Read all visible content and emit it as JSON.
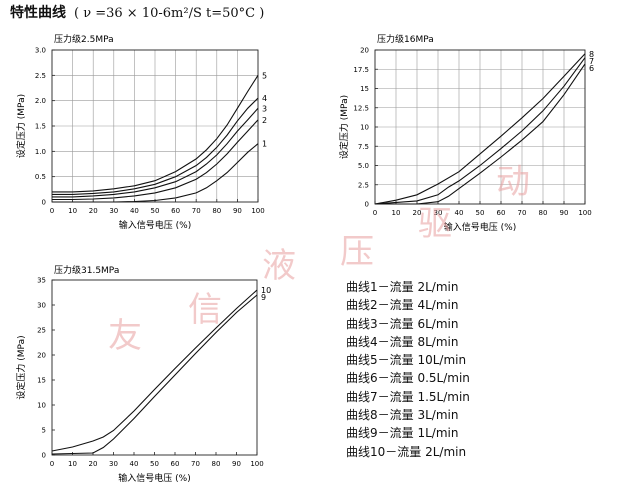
{
  "header": {
    "title": "特性曲线",
    "condition": "( ν =36 × 10-6m²/S  t=50°C )"
  },
  "legend": [
    "曲线1－流量 2L/min",
    "曲线2－流量 4L/min",
    "曲线3－流量 6L/min",
    "曲线4－流量 8L/min",
    "曲线5－流量 10L/min",
    "曲线6－流量 0.5L/min",
    "曲线7－流量 1.5L/min",
    "曲线8－流量 3L/min",
    "曲线9－流量 1L/min",
    "曲线10－流量 2L/min"
  ],
  "watermark": [
    "友",
    "信",
    "液",
    "压",
    "驱",
    "动"
  ],
  "chart_data": [
    {
      "type": "line",
      "title": "压力级2.5MPa",
      "xlabel": "输入信号电压 (%)",
      "ylabel": "设定压力 (MPa)",
      "xlim": [
        0,
        100
      ],
      "ylim": [
        0,
        3.0
      ],
      "xticks": [
        "0",
        "10",
        "20",
        "30",
        "40",
        "50",
        "60",
        "70",
        "80",
        "90",
        "100"
      ],
      "yticks": [
        "0",
        "0.5",
        "1.0",
        "1.5",
        "2.0",
        "2.5",
        "3.0"
      ],
      "grid": true,
      "series": [
        {
          "name": "1",
          "x": [
            0,
            10,
            20,
            30,
            40,
            50,
            60,
            70,
            75,
            80,
            85,
            90,
            95,
            100
          ],
          "y": [
            0,
            0,
            0,
            0,
            0.01,
            0.03,
            0.08,
            0.18,
            0.28,
            0.42,
            0.58,
            0.78,
            0.98,
            1.15
          ]
        },
        {
          "name": "2",
          "x": [
            0,
            10,
            20,
            30,
            40,
            50,
            60,
            70,
            75,
            80,
            85,
            90,
            95,
            100
          ],
          "y": [
            0.05,
            0.05,
            0.06,
            0.08,
            0.12,
            0.18,
            0.28,
            0.45,
            0.58,
            0.75,
            0.95,
            1.18,
            1.4,
            1.62
          ]
        },
        {
          "name": "3",
          "x": [
            0,
            10,
            20,
            30,
            40,
            50,
            60,
            70,
            75,
            80,
            85,
            90,
            95,
            100
          ],
          "y": [
            0.1,
            0.1,
            0.12,
            0.15,
            0.2,
            0.28,
            0.4,
            0.6,
            0.75,
            0.93,
            1.15,
            1.4,
            1.62,
            1.85
          ]
        },
        {
          "name": "4",
          "x": [
            0,
            10,
            20,
            30,
            40,
            50,
            60,
            70,
            75,
            80,
            85,
            90,
            95,
            100
          ],
          "y": [
            0.15,
            0.15,
            0.17,
            0.2,
            0.26,
            0.35,
            0.5,
            0.72,
            0.88,
            1.08,
            1.32,
            1.6,
            1.85,
            2.05
          ]
        },
        {
          "name": "5",
          "x": [
            0,
            10,
            20,
            30,
            40,
            50,
            60,
            70,
            75,
            80,
            85,
            90,
            95,
            100
          ],
          "y": [
            0.2,
            0.2,
            0.22,
            0.26,
            0.32,
            0.42,
            0.6,
            0.85,
            1.03,
            1.25,
            1.52,
            1.85,
            2.18,
            2.5
          ]
        }
      ]
    },
    {
      "type": "line",
      "title": "压力级16MPa",
      "xlabel": "输入信号电压 (%)",
      "ylabel": "设定压力 (MPa)",
      "xlim": [
        0,
        100
      ],
      "ylim": [
        0,
        20
      ],
      "xticks": [
        "0",
        "10",
        "20",
        "30",
        "40",
        "50",
        "60",
        "70",
        "80",
        "90",
        "100"
      ],
      "yticks": [
        "0",
        "2.5",
        "5.0",
        "7.5",
        "10",
        "12.5",
        "15",
        "17.5",
        "20"
      ],
      "grid": true,
      "series": [
        {
          "name": "6",
          "x": [
            0,
            20,
            30,
            35,
            40,
            50,
            60,
            70,
            80,
            90,
            100
          ],
          "y": [
            0,
            0,
            0.3,
            1.0,
            2.0,
            4.0,
            6.1,
            8.3,
            10.7,
            14.2,
            18.2
          ]
        },
        {
          "name": "7",
          "x": [
            0,
            20,
            30,
            35,
            40,
            50,
            60,
            70,
            80,
            90,
            100
          ],
          "y": [
            0,
            0.4,
            1.2,
            2.2,
            3.0,
            5.0,
            7.2,
            9.5,
            12.1,
            15.3,
            19.0
          ]
        },
        {
          "name": "8",
          "x": [
            0,
            10,
            20,
            30,
            40,
            50,
            60,
            70,
            80,
            90,
            100
          ],
          "y": [
            0,
            0.5,
            1.2,
            2.6,
            4.2,
            6.5,
            8.8,
            11.2,
            13.7,
            16.6,
            19.5
          ]
        }
      ]
    },
    {
      "type": "line",
      "title": "压力级31.5MPa",
      "xlabel": "输入信号电压 (%)",
      "ylabel": "设定压力 (MPa)",
      "xlim": [
        0,
        100
      ],
      "ylim": [
        0,
        35
      ],
      "xticks": [
        "0",
        "10",
        "20",
        "30",
        "40",
        "50",
        "60",
        "70",
        "80",
        "90",
        "100"
      ],
      "yticks": [
        "0",
        "5",
        "10",
        "15",
        "20",
        "25",
        "30",
        "35"
      ],
      "grid": false,
      "series": [
        {
          "name": "9",
          "x": [
            0,
            10,
            20,
            25,
            30,
            40,
            50,
            60,
            70,
            80,
            90,
            100
          ],
          "y": [
            0.2,
            0.3,
            0.4,
            1.5,
            3.2,
            7.3,
            11.7,
            16.0,
            20.3,
            24.5,
            28.5,
            32.0
          ]
        },
        {
          "name": "10",
          "x": [
            0,
            10,
            20,
            25,
            30,
            40,
            50,
            60,
            70,
            80,
            90,
            100
          ],
          "y": [
            0.8,
            1.6,
            2.8,
            3.6,
            4.9,
            8.8,
            13.1,
            17.3,
            21.4,
            25.4,
            29.3,
            33.0
          ]
        }
      ]
    }
  ]
}
